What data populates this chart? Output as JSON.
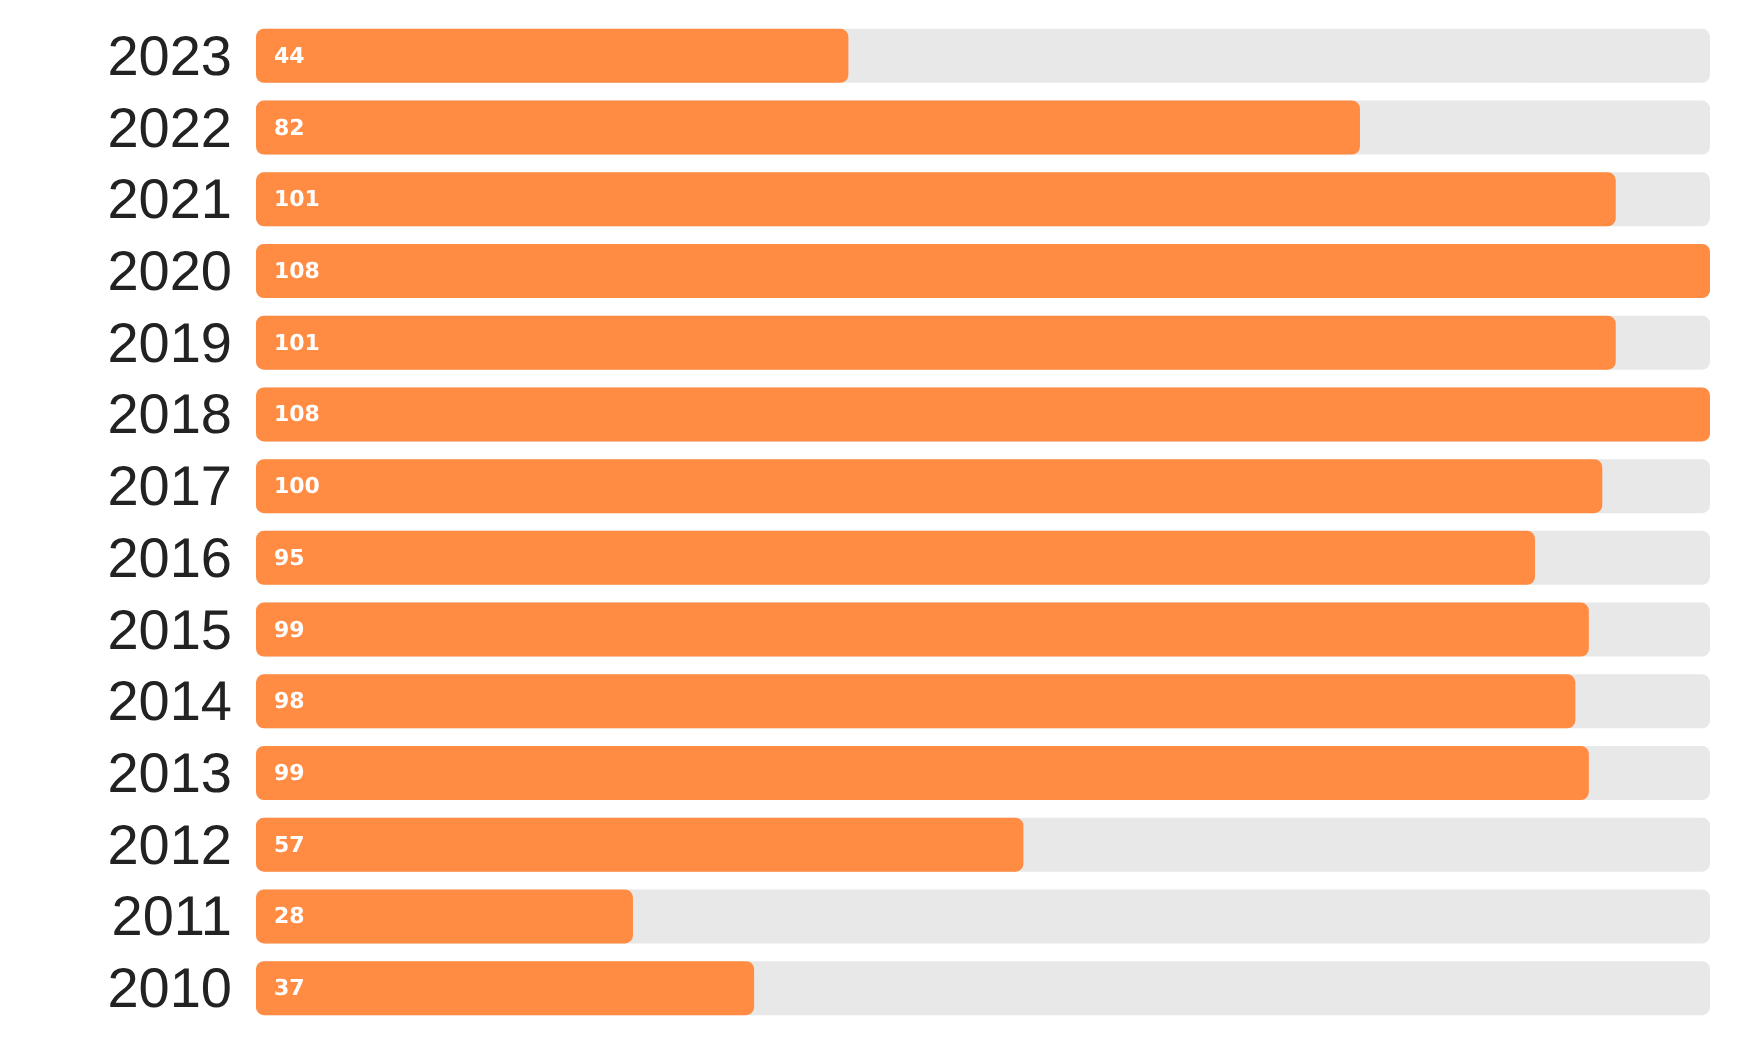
{
  "chart_data": {
    "type": "bar",
    "orientation": "horizontal",
    "categories": [
      "2023",
      "2022",
      "2021",
      "2020",
      "2019",
      "2018",
      "2017",
      "2016",
      "2015",
      "2014",
      "2013",
      "2012",
      "2011",
      "2010"
    ],
    "values": [
      44,
      82,
      101,
      108,
      101,
      108,
      100,
      95,
      99,
      98,
      99,
      57,
      28,
      37
    ],
    "color": "#ff8c42",
    "data_labels": true
  }
}
